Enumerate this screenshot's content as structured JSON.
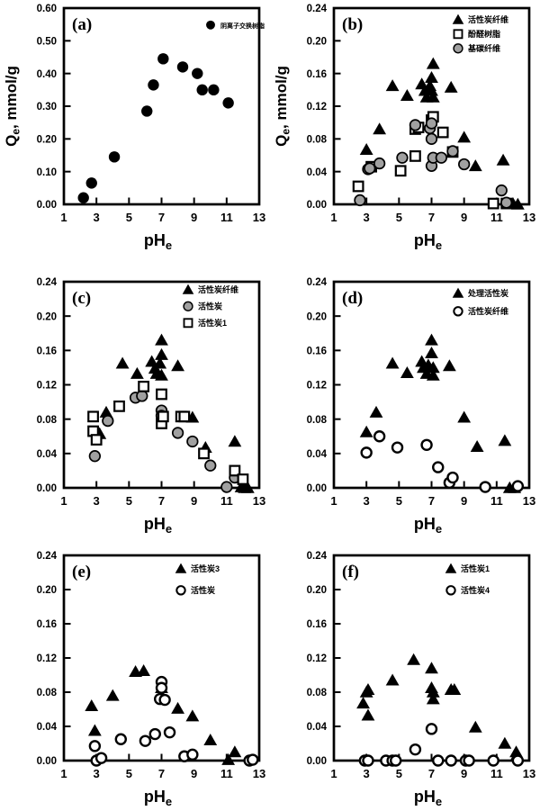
{
  "figure": {
    "xlabel": {
      "main": "pH",
      "sub": "e"
    },
    "ylabel": {
      "main": "Q",
      "sub": "e",
      "rest": ", mmol/g"
    },
    "colors": {
      "marker_black": "#000000",
      "marker_gray": "#a0a0a0",
      "marker_open_fill": "#ffffff",
      "axis": "#000000",
      "background": "#ffffff"
    }
  },
  "chart_data": [
    {
      "type": "scatter",
      "panel": "(a)",
      "xlabel": "pHe",
      "ylabel": "Qe, mmol/g",
      "show_ylabel": true,
      "xlim": [
        1,
        13
      ],
      "xticks": [
        1,
        3,
        5,
        7,
        9,
        11,
        13
      ],
      "ylim": [
        0,
        0.6
      ],
      "yticks": [
        0.0,
        0.1,
        0.2,
        0.3,
        0.4,
        0.5,
        0.6
      ],
      "grid": false,
      "legend_pos": {
        "x": 234,
        "y": 31,
        "dy": 16,
        "font": 7
      },
      "series": [
        {
          "name": "阴离子交换树脂",
          "marker": "circle-filled",
          "points": [
            [
              2.2,
              0.02
            ],
            [
              2.7,
              0.065
            ],
            [
              4.1,
              0.145
            ],
            [
              6.1,
              0.285
            ],
            [
              6.5,
              0.365
            ],
            [
              7.1,
              0.445
            ],
            [
              8.3,
              0.42
            ],
            [
              9.2,
              0.4
            ],
            [
              9.5,
              0.35
            ],
            [
              10.2,
              0.35
            ],
            [
              11.1,
              0.31
            ]
          ]
        }
      ]
    },
    {
      "type": "scatter",
      "panel": "(b)",
      "xlabel": "pHe",
      "ylabel": "Qe, mmol/g",
      "show_ylabel": true,
      "xlim": [
        1,
        13
      ],
      "xticks": [
        1,
        3,
        5,
        7,
        9,
        11,
        13
      ],
      "ylim": [
        0,
        0.24
      ],
      "yticks": [
        0.0,
        0.04,
        0.08,
        0.12,
        0.16,
        0.2,
        0.24
      ],
      "grid": false,
      "legend_pos": {
        "x": 209,
        "y": 25,
        "dy": 16,
        "font": 9
      },
      "series": [
        {
          "name": "活性炭纤维",
          "marker": "triangle-filled",
          "points": [
            [
              3.0,
              0.067
            ],
            [
              3.8,
              0.092
            ],
            [
              4.6,
              0.145
            ],
            [
              5.5,
              0.133
            ],
            [
              6.4,
              0.147
            ],
            [
              6.6,
              0.139
            ],
            [
              6.7,
              0.131
            ],
            [
              6.9,
              0.145
            ],
            [
              7.0,
              0.139
            ],
            [
              7.0,
              0.155
            ],
            [
              7.1,
              0.172
            ],
            [
              7.1,
              0.131
            ],
            [
              8.2,
              0.143
            ],
            [
              9.0,
              0.082
            ],
            [
              9.7,
              0.047
            ],
            [
              11.4,
              0.054
            ],
            [
              12.0,
              0.001
            ],
            [
              12.3,
              0.0
            ]
          ]
        },
        {
          "name": "酚醛树脂",
          "marker": "square-open",
          "points": [
            [
              2.5,
              0.022
            ],
            [
              3.3,
              0.046
            ],
            [
              5.1,
              0.041
            ],
            [
              6.0,
              0.059
            ],
            [
              6.0,
              0.092
            ],
            [
              6.2,
              0.094
            ],
            [
              7.0,
              0.103
            ],
            [
              7.1,
              0.107
            ],
            [
              7.7,
              0.088
            ],
            [
              8.3,
              0.064
            ],
            [
              10.8,
              0.001
            ],
            [
              11.6,
              0.001
            ]
          ]
        },
        {
          "name": "基碳纤维",
          "marker": "circle-gray",
          "points": [
            [
              2.6,
              0.005
            ],
            [
              3.1,
              0.043
            ],
            [
              3.2,
              0.044
            ],
            [
              3.8,
              0.05
            ],
            [
              5.2,
              0.057
            ],
            [
              6.0,
              0.097
            ],
            [
              6.9,
              0.093
            ],
            [
              7.0,
              0.099
            ],
            [
              7.0,
              0.08
            ],
            [
              7.0,
              0.047
            ],
            [
              7.1,
              0.057
            ],
            [
              7.6,
              0.057
            ],
            [
              8.3,
              0.065
            ],
            [
              9.0,
              0.049
            ],
            [
              11.3,
              0.017
            ],
            [
              11.6,
              0.002
            ]
          ]
        }
      ]
    },
    {
      "type": "scatter",
      "panel": "(c)",
      "xlabel": "pHe",
      "ylabel": "",
      "show_ylabel": false,
      "xlim": [
        1,
        13
      ],
      "xticks": [
        1,
        3,
        5,
        7,
        9,
        11,
        13
      ],
      "ylim": [
        0,
        0.24
      ],
      "yticks": [
        0.0,
        0.04,
        0.08,
        0.12,
        0.16,
        0.2,
        0.24
      ],
      "grid": false,
      "legend_pos": {
        "x": 209,
        "y": 25,
        "dy": 18.5,
        "font": 9
      },
      "series": [
        {
          "name": "活性炭纤维",
          "marker": "triangle-filled",
          "points": [
            [
              3.1,
              0.065
            ],
            [
              3.2,
              0.063
            ],
            [
              3.6,
              0.088
            ],
            [
              4.6,
              0.145
            ],
            [
              5.5,
              0.133
            ],
            [
              6.4,
              0.147
            ],
            [
              6.6,
              0.139
            ],
            [
              6.7,
              0.133
            ],
            [
              6.9,
              0.145
            ],
            [
              7.0,
              0.155
            ],
            [
              7.0,
              0.172
            ],
            [
              7.0,
              0.131
            ],
            [
              8.0,
              0.142
            ],
            [
              8.9,
              0.082
            ],
            [
              9.7,
              0.047
            ],
            [
              11.5,
              0.054
            ],
            [
              11.9,
              0.001
            ],
            [
              12.1,
              0.0
            ],
            [
              12.3,
              0.0
            ]
          ]
        },
        {
          "name": "活性炭",
          "marker": "circle-gray",
          "points": [
            [
              2.9,
              0.037
            ],
            [
              3.7,
              0.078
            ],
            [
              5.4,
              0.105
            ],
            [
              5.8,
              0.107
            ],
            [
              7.0,
              0.09
            ],
            [
              7.0,
              0.084
            ],
            [
              8.0,
              0.064
            ],
            [
              8.9,
              0.054
            ],
            [
              10.0,
              0.026
            ],
            [
              11.0,
              0.001
            ],
            [
              11.5,
              0.012
            ]
          ]
        },
        {
          "name": "活性炭1",
          "marker": "square-open",
          "points": [
            [
              2.8,
              0.083
            ],
            [
              2.8,
              0.066
            ],
            [
              3.0,
              0.056
            ],
            [
              4.4,
              0.095
            ],
            [
              5.9,
              0.118
            ],
            [
              7.0,
              0.109
            ],
            [
              7.0,
              0.075
            ],
            [
              7.1,
              0.083
            ],
            [
              8.2,
              0.083
            ],
            [
              8.4,
              0.083
            ],
            [
              9.6,
              0.04
            ],
            [
              11.5,
              0.02
            ],
            [
              12.0,
              0.01
            ]
          ]
        }
      ]
    },
    {
      "type": "scatter",
      "panel": "(d)",
      "xlabel": "pHe",
      "ylabel": "",
      "show_ylabel": false,
      "xlim": [
        1,
        13
      ],
      "xticks": [
        1,
        3,
        5,
        7,
        9,
        11,
        13
      ],
      "ylim": [
        0,
        0.24
      ],
      "yticks": [
        0.0,
        0.04,
        0.08,
        0.12,
        0.16,
        0.2,
        0.24
      ],
      "grid": false,
      "legend_pos": {
        "x": 209,
        "y": 29,
        "dy": 20,
        "font": 9
      },
      "series": [
        {
          "name": "处理活性炭",
          "marker": "triangle-filled",
          "points": [
            [
              3.0,
              0.065
            ],
            [
              3.6,
              0.088
            ],
            [
              4.6,
              0.145
            ],
            [
              5.5,
              0.134
            ],
            [
              6.4,
              0.147
            ],
            [
              6.5,
              0.14
            ],
            [
              6.7,
              0.133
            ],
            [
              6.8,
              0.143
            ],
            [
              7.0,
              0.157
            ],
            [
              7.0,
              0.172
            ],
            [
              7.1,
              0.14
            ],
            [
              7.1,
              0.131
            ],
            [
              8.1,
              0.142
            ],
            [
              9.0,
              0.082
            ],
            [
              9.8,
              0.048
            ],
            [
              11.5,
              0.055
            ],
            [
              11.8,
              0.0
            ],
            [
              12.1,
              0.0
            ]
          ]
        },
        {
          "name": "活性炭纤维",
          "marker": "circle-open",
          "points": [
            [
              3.0,
              0.041
            ],
            [
              3.8,
              0.06
            ],
            [
              4.9,
              0.047
            ],
            [
              6.7,
              0.05
            ],
            [
              7.4,
              0.024
            ],
            [
              8.1,
              0.006
            ],
            [
              8.3,
              0.012
            ],
            [
              10.3,
              0.001
            ],
            [
              12.3,
              0.002
            ]
          ]
        }
      ]
    },
    {
      "type": "scatter",
      "panel": "(e)",
      "xlabel": "pHe",
      "ylabel": "",
      "show_ylabel": false,
      "xlim": [
        1,
        13
      ],
      "xticks": [
        1,
        3,
        5,
        7,
        9,
        11,
        13
      ],
      "ylim": [
        0,
        0.24
      ],
      "yticks": [
        0.0,
        0.04,
        0.08,
        0.12,
        0.16,
        0.2,
        0.24
      ],
      "grid": false,
      "legend_pos": {
        "x": 201,
        "y": 35,
        "dy": 24,
        "font": 9
      },
      "series": [
        {
          "name": "活性炭3",
          "marker": "triangle-filled",
          "points": [
            [
              2.7,
              0.064
            ],
            [
              2.9,
              0.035
            ],
            [
              4.0,
              0.076
            ],
            [
              5.4,
              0.104
            ],
            [
              5.9,
              0.105
            ],
            [
              7.0,
              0.085
            ],
            [
              7.1,
              0.073
            ],
            [
              8.0,
              0.061
            ],
            [
              8.9,
              0.052
            ],
            [
              10.0,
              0.024
            ],
            [
              11.1,
              0.001
            ],
            [
              11.5,
              0.01
            ]
          ]
        },
        {
          "name": "活性炭",
          "marker": "circle-open",
          "points": [
            [
              2.9,
              0.017
            ],
            [
              3.0,
              0.0
            ],
            [
              3.3,
              0.003
            ],
            [
              4.5,
              0.025
            ],
            [
              6.0,
              0.023
            ],
            [
              6.6,
              0.031
            ],
            [
              7.0,
              0.092
            ],
            [
              7.0,
              0.085
            ],
            [
              6.9,
              0.072
            ],
            [
              7.2,
              0.071
            ],
            [
              7.5,
              0.033
            ],
            [
              8.4,
              0.005
            ],
            [
              8.9,
              0.007
            ],
            [
              12.4,
              0.0
            ],
            [
              12.6,
              0.001
            ]
          ]
        }
      ]
    },
    {
      "type": "scatter",
      "panel": "(f)",
      "xlabel": "pHe",
      "ylabel": "",
      "show_ylabel": false,
      "xlim": [
        1,
        13
      ],
      "xticks": [
        1,
        3,
        5,
        7,
        9,
        11,
        13
      ],
      "ylim": [
        0,
        0.24
      ],
      "yticks": [
        0.0,
        0.04,
        0.08,
        0.12,
        0.16,
        0.2,
        0.24
      ],
      "grid": false,
      "legend_pos": {
        "x": 201,
        "y": 35,
        "dy": 24,
        "font": 9
      },
      "series": [
        {
          "name": "活性炭1",
          "marker": "triangle-filled",
          "points": [
            [
              2.8,
              0.067
            ],
            [
              3.0,
              0.08
            ],
            [
              3.1,
              0.083
            ],
            [
              3.1,
              0.053
            ],
            [
              4.6,
              0.094
            ],
            [
              5.9,
              0.118
            ],
            [
              7.0,
              0.108
            ],
            [
              7.0,
              0.085
            ],
            [
              7.1,
              0.072
            ],
            [
              7.1,
              0.08
            ],
            [
              8.2,
              0.083
            ],
            [
              8.4,
              0.083
            ],
            [
              9.7,
              0.039
            ],
            [
              11.5,
              0.02
            ],
            [
              12.2,
              0.01
            ],
            [
              12.2,
              0.005
            ]
          ]
        },
        {
          "name": "活性炭4",
          "marker": "circle-open",
          "points": [
            [
              2.9,
              0.0
            ],
            [
              3.1,
              0.0
            ],
            [
              4.2,
              0.0
            ],
            [
              4.6,
              0.0
            ],
            [
              4.8,
              0.0
            ],
            [
              6.0,
              0.013
            ],
            [
              7.0,
              0.037
            ],
            [
              7.4,
              0.0
            ],
            [
              8.2,
              0.0
            ],
            [
              9.1,
              0.0
            ],
            [
              9.3,
              0.0
            ],
            [
              10.8,
              0.0
            ],
            [
              12.3,
              0.0
            ]
          ]
        }
      ]
    }
  ]
}
